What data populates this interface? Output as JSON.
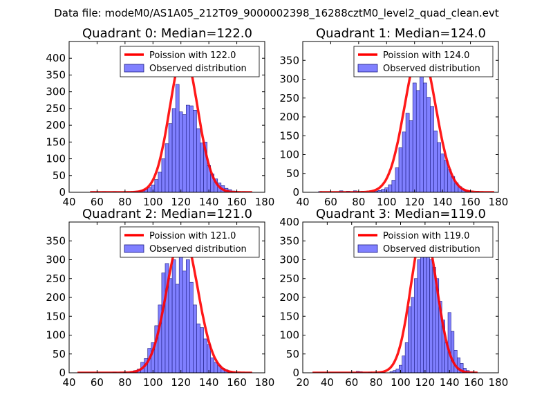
{
  "figure": {
    "suptitle": "Data file: modeM0/AS1A05_212T09_9000002398_16288cztM0_level2_quad_clean.evt",
    "colors": {
      "hist_fill": "#8080ff",
      "hist_edge": "#1a1a80",
      "poisson_line": "#ff0000",
      "background": "#ffffff"
    }
  },
  "chart_data": [
    {
      "type": "bar",
      "title": "Quadrant 0: Median=122.0",
      "xlim": [
        40,
        180
      ],
      "ylim": [
        0,
        450
      ],
      "xticks": [
        40,
        60,
        80,
        100,
        120,
        140,
        160,
        180
      ],
      "yticks": [
        0,
        50,
        100,
        150,
        200,
        250,
        300,
        350,
        400
      ],
      "bin_width": 2.5,
      "bins": [
        [
          57.5,
          2
        ],
        [
          65,
          2
        ],
        [
          72.5,
          2
        ],
        [
          80,
          1
        ],
        [
          87.5,
          3
        ],
        [
          90,
          3
        ],
        [
          92.5,
          5
        ],
        [
          95,
          8
        ],
        [
          97.5,
          14
        ],
        [
          100,
          22
        ],
        [
          102.5,
          38
        ],
        [
          105,
          60
        ],
        [
          107.5,
          100
        ],
        [
          110,
          145
        ],
        [
          112.5,
          205
        ],
        [
          115,
          250
        ],
        [
          117.5,
          322
        ],
        [
          120,
          240
        ],
        [
          122.5,
          232
        ],
        [
          125,
          260
        ],
        [
          127.5,
          258
        ],
        [
          130,
          245
        ],
        [
          132.5,
          190
        ],
        [
          135,
          147
        ],
        [
          137.5,
          150
        ],
        [
          140,
          80
        ],
        [
          142.5,
          55
        ],
        [
          145,
          40
        ],
        [
          147.5,
          28
        ],
        [
          150,
          20
        ],
        [
          152.5,
          12
        ],
        [
          155,
          8
        ],
        [
          157.5,
          4
        ],
        [
          160,
          2
        ],
        [
          165,
          2
        ]
      ],
      "poisson": {
        "label": "Poission with 122.0",
        "mean": 122.0,
        "peak": 415,
        "sigma": 10.0,
        "x_range": [
          55,
          171
        ]
      },
      "legend": {
        "line_label": "Poission with 122.0",
        "hist_label": "Observed distribution",
        "position": "upper right"
      }
    },
    {
      "type": "bar",
      "title": "Quadrant 1: Median=124.0",
      "xlim": [
        40,
        180
      ],
      "ylim": [
        0,
        400
      ],
      "xticks": [
        40,
        60,
        80,
        100,
        120,
        140,
        160,
        180
      ],
      "yticks": [
        0,
        50,
        100,
        150,
        200,
        250,
        300,
        350
      ],
      "bin_width": 2.5,
      "bins": [
        [
          52.5,
          2
        ],
        [
          67.5,
          4
        ],
        [
          72.5,
          3
        ],
        [
          77.5,
          4
        ],
        [
          82.5,
          2
        ],
        [
          92.5,
          3
        ],
        [
          95,
          5
        ],
        [
          97.5,
          8
        ],
        [
          100,
          12
        ],
        [
          102.5,
          20
        ],
        [
          105,
          32
        ],
        [
          107.5,
          65
        ],
        [
          110,
          118
        ],
        [
          112.5,
          160
        ],
        [
          115,
          210
        ],
        [
          117.5,
          190
        ],
        [
          120,
          290
        ],
        [
          122.5,
          270
        ],
        [
          125,
          355
        ],
        [
          127.5,
          290
        ],
        [
          130,
          252
        ],
        [
          132.5,
          228
        ],
        [
          135,
          163
        ],
        [
          137.5,
          132
        ],
        [
          140,
          102
        ],
        [
          142.5,
          85
        ],
        [
          145,
          60
        ],
        [
          147.5,
          42
        ],
        [
          150,
          25
        ],
        [
          152.5,
          15
        ],
        [
          155,
          8
        ],
        [
          157.5,
          4
        ],
        [
          160,
          2
        ],
        [
          165,
          2
        ]
      ],
      "poisson": {
        "label": "Poission with 124.0",
        "mean": 124.0,
        "peak": 378,
        "sigma": 11.1,
        "x_range": [
          52,
          177
        ]
      },
      "legend": {
        "line_label": "Poission with 124.0",
        "hist_label": "Observed distribution",
        "position": "upper right"
      }
    },
    {
      "type": "bar",
      "title": "Quadrant 2: Median=121.0",
      "xlim": [
        40,
        180
      ],
      "ylim": [
        0,
        400
      ],
      "xticks": [
        40,
        60,
        80,
        100,
        120,
        140,
        160,
        180
      ],
      "yticks": [
        0,
        50,
        100,
        150,
        200,
        250,
        300,
        350
      ],
      "bin_width": 2.5,
      "bins": [
        [
          72.5,
          2
        ],
        [
          80,
          2
        ],
        [
          85,
          3
        ],
        [
          87.5,
          6
        ],
        [
          90,
          10
        ],
        [
          92.5,
          28
        ],
        [
          95,
          38
        ],
        [
          97.5,
          65
        ],
        [
          100,
          80
        ],
        [
          102.5,
          125
        ],
        [
          105,
          180
        ],
        [
          107.5,
          265
        ],
        [
          110,
          290
        ],
        [
          112.5,
          250
        ],
        [
          115,
          300
        ],
        [
          117.5,
          235
        ],
        [
          120,
          320
        ],
        [
          122.5,
          270
        ],
        [
          125,
          300
        ],
        [
          127.5,
          240
        ],
        [
          130,
          180
        ],
        [
          132.5,
          130
        ],
        [
          135,
          120
        ],
        [
          137.5,
          90
        ],
        [
          140,
          75
        ],
        [
          142.5,
          40
        ],
        [
          145,
          28
        ],
        [
          147.5,
          20
        ],
        [
          150,
          12
        ],
        [
          152.5,
          8
        ],
        [
          155,
          4
        ],
        [
          157.5,
          2
        ]
      ],
      "poisson": {
        "label": "Poission with 121.0",
        "mean": 121.0,
        "peak": 370,
        "sigma": 11.0,
        "x_range": [
          46,
          171
        ]
      },
      "legend": {
        "line_label": "Poission with 121.0",
        "hist_label": "Observed distribution",
        "position": "upper right"
      }
    },
    {
      "type": "bar",
      "title": "Quadrant 3: Median=119.0",
      "xlim": [
        20,
        180
      ],
      "ylim": [
        0,
        400
      ],
      "xticks": [
        20,
        40,
        60,
        80,
        100,
        120,
        140,
        160,
        180
      ],
      "yticks": [
        0,
        50,
        100,
        150,
        200,
        250,
        300,
        350,
        400
      ],
      "bin_width": 2.5,
      "bins": [
        [
          65,
          4
        ],
        [
          67.5,
          3
        ],
        [
          75,
          2
        ],
        [
          85,
          2
        ],
        [
          92.5,
          3
        ],
        [
          95,
          6
        ],
        [
          97.5,
          10
        ],
        [
          100,
          20
        ],
        [
          102.5,
          45
        ],
        [
          105,
          80
        ],
        [
          107.5,
          175
        ],
        [
          110,
          200
        ],
        [
          112.5,
          250
        ],
        [
          115,
          300
        ],
        [
          117.5,
          350
        ],
        [
          120,
          320
        ],
        [
          122.5,
          360
        ],
        [
          125,
          300
        ],
        [
          127.5,
          280
        ],
        [
          130,
          250
        ],
        [
          132.5,
          190
        ],
        [
          135,
          140
        ],
        [
          137.5,
          80
        ],
        [
          140,
          160
        ],
        [
          142.5,
          110
        ],
        [
          145,
          60
        ],
        [
          147.5,
          40
        ],
        [
          150,
          25
        ],
        [
          152.5,
          12
        ],
        [
          155,
          6
        ],
        [
          157.5,
          3
        ]
      ],
      "poisson": {
        "label": "Poission with 119.0",
        "mean": 119.0,
        "peak": 380,
        "sigma": 10.6,
        "x_range": [
          28,
          163
        ]
      },
      "legend": {
        "line_label": "Poission with 119.0",
        "hist_label": "Observed distribution",
        "position": "upper right"
      }
    }
  ]
}
